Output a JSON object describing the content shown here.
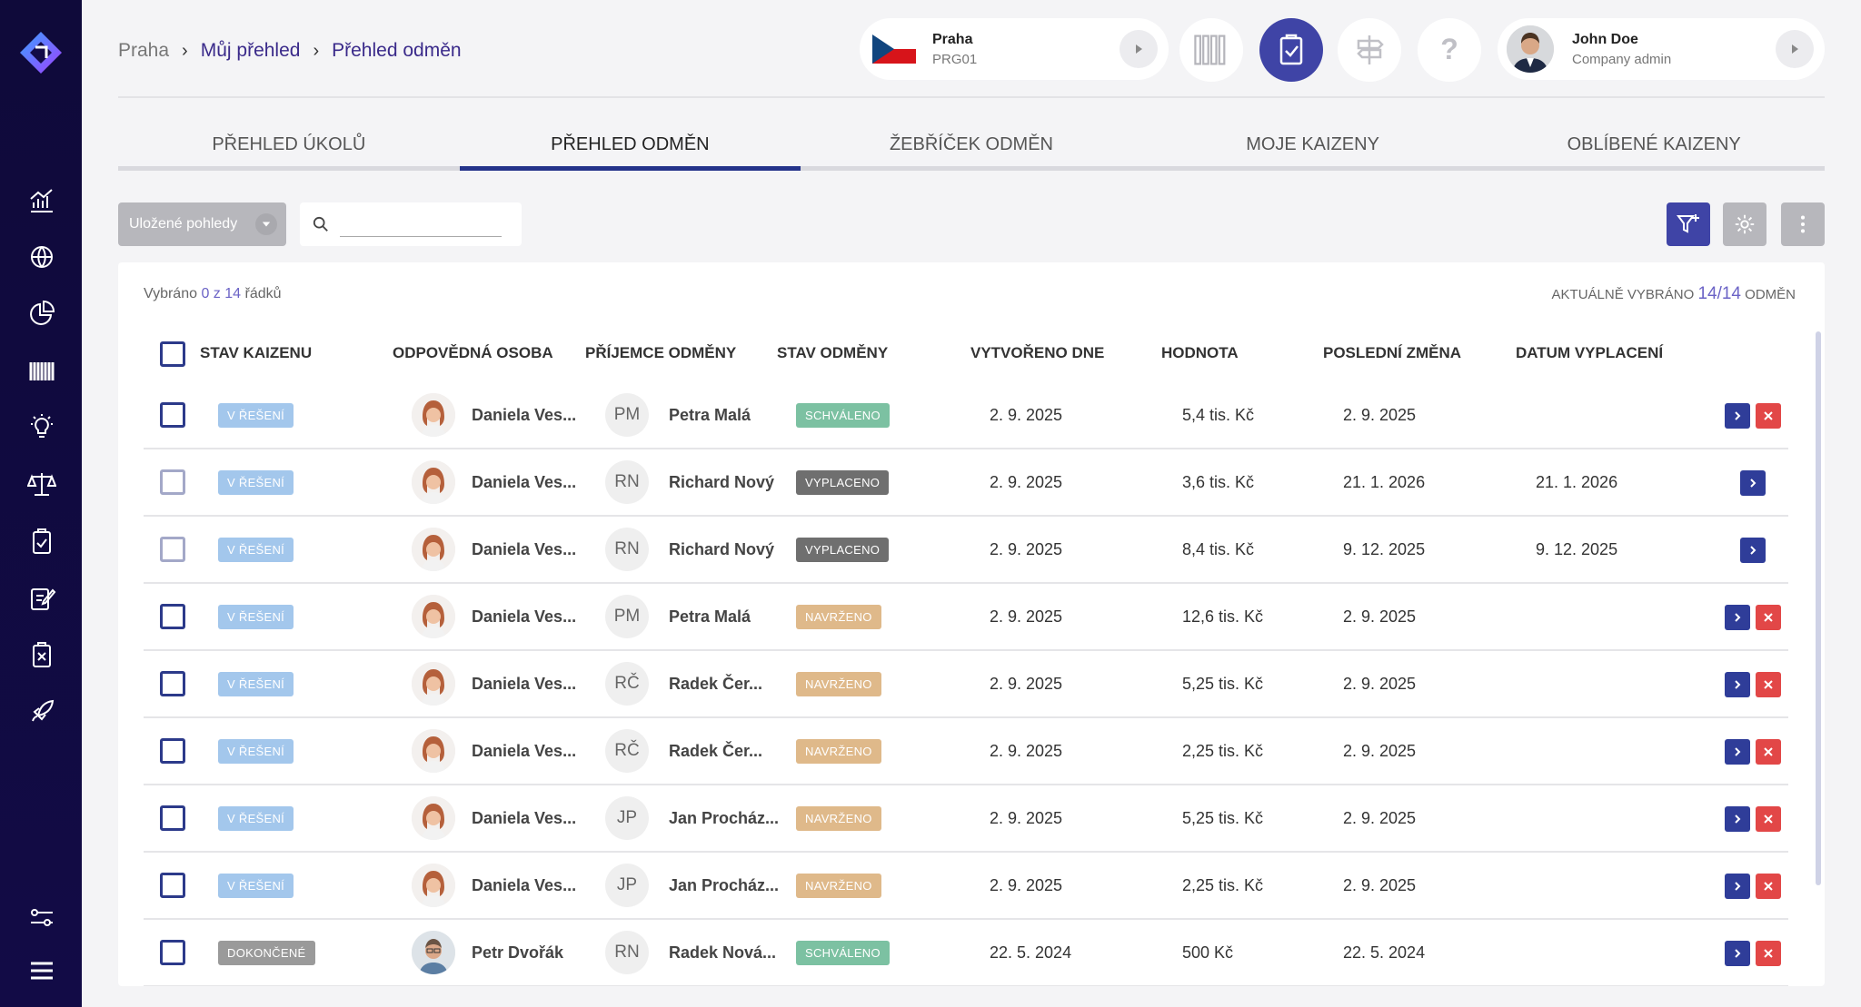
{
  "breadcrumb": {
    "home": "Praha",
    "level1": "Můj přehled",
    "level2": "Přehled odměn"
  },
  "site": {
    "name": "Praha",
    "code": "PRG01"
  },
  "user": {
    "name": "John Doe",
    "role": "Company admin"
  },
  "tabs": [
    {
      "label": "PŘEHLED ÚKOLŮ",
      "active": false
    },
    {
      "label": "PŘEHLED ODMĚN",
      "active": true
    },
    {
      "label": "ŽEBŘÍČEK ODMĚN",
      "active": false
    },
    {
      "label": "MOJE KAIZENY",
      "active": false
    },
    {
      "label": "OBLÍBENÉ KAIZENY",
      "active": false
    }
  ],
  "toolbar": {
    "saved_views": "Uložené pohledy",
    "search_value": "",
    "search_placeholder": ""
  },
  "selection": {
    "prefix": "Vybráno",
    "count": "0 z 14",
    "suffix": "řádků"
  },
  "actual": {
    "prefix": "Aktuálně vybráno",
    "count": "14/14",
    "suffix": "odměn"
  },
  "columns": {
    "stav_kaizenu": "STAV KAIZENU",
    "odpovedna_osoba": "ODPOVĚDNÁ OSOBA",
    "prijemce": "PŘÍJEMCE ODMĚNY",
    "stav_odmeny": "STAV ODMĚNY",
    "vytvoreno": "VYTVOŘENO DNE",
    "hodnota": "HODNOTA",
    "posledni_zmena": "POSLEDNÍ ZMĚNA",
    "datum_vyplaceni": "DATUM VYPLACENÍ"
  },
  "rows": [
    {
      "kaizen_status": "V ŘEŠENÍ",
      "kaizen_class": "b-resi",
      "owner": "Daniela Ves...",
      "owner_avatar": "female",
      "initials": "PM",
      "recipient": "Petra Malá",
      "reward_status": "SCHVÁLENO",
      "reward_class": "b-schv",
      "created": "2. 9. 2025",
      "value": "5,4 tis. Kč",
      "changed": "2. 9. 2025",
      "paid": "",
      "checkbox": "dark",
      "delete": true
    },
    {
      "kaizen_status": "V ŘEŠENÍ",
      "kaizen_class": "b-resi",
      "owner": "Daniela Ves...",
      "owner_avatar": "female",
      "initials": "RN",
      "recipient": "Richard Nový",
      "reward_status": "VYPLACENO",
      "reward_class": "b-vypl",
      "created": "2. 9. 2025",
      "value": "3,6 tis. Kč",
      "changed": "21. 1. 2026",
      "paid": "21. 1. 2026",
      "checkbox": "light",
      "delete": false
    },
    {
      "kaizen_status": "V ŘEŠENÍ",
      "kaizen_class": "b-resi",
      "owner": "Daniela Ves...",
      "owner_avatar": "female",
      "initials": "RN",
      "recipient": "Richard Nový",
      "reward_status": "VYPLACENO",
      "reward_class": "b-vypl",
      "created": "2. 9. 2025",
      "value": "8,4 tis. Kč",
      "changed": "9. 12. 2025",
      "paid": "9. 12. 2025",
      "checkbox": "light",
      "delete": false
    },
    {
      "kaizen_status": "V ŘEŠENÍ",
      "kaizen_class": "b-resi",
      "owner": "Daniela Ves...",
      "owner_avatar": "female",
      "initials": "PM",
      "recipient": "Petra Malá",
      "reward_status": "NAVRŽENO",
      "reward_class": "b-navr",
      "created": "2. 9. 2025",
      "value": "12,6 tis. Kč",
      "changed": "2. 9. 2025",
      "paid": "",
      "checkbox": "dark",
      "delete": true
    },
    {
      "kaizen_status": "V ŘEŠENÍ",
      "kaizen_class": "b-resi",
      "owner": "Daniela Ves...",
      "owner_avatar": "female",
      "initials": "RČ",
      "recipient": "Radek Čer...",
      "reward_status": "NAVRŽENO",
      "reward_class": "b-navr",
      "created": "2. 9. 2025",
      "value": "5,25 tis. Kč",
      "changed": "2. 9. 2025",
      "paid": "",
      "checkbox": "dark",
      "delete": true
    },
    {
      "kaizen_status": "V ŘEŠENÍ",
      "kaizen_class": "b-resi",
      "owner": "Daniela Ves...",
      "owner_avatar": "female",
      "initials": "RČ",
      "recipient": "Radek Čer...",
      "reward_status": "NAVRŽENO",
      "reward_class": "b-navr",
      "created": "2. 9. 2025",
      "value": "2,25 tis. Kč",
      "changed": "2. 9. 2025",
      "paid": "",
      "checkbox": "dark",
      "delete": true
    },
    {
      "kaizen_status": "V ŘEŠENÍ",
      "kaizen_class": "b-resi",
      "owner": "Daniela Ves...",
      "owner_avatar": "female",
      "initials": "JP",
      "recipient": "Jan Procház...",
      "reward_status": "NAVRŽENO",
      "reward_class": "b-navr",
      "created": "2. 9. 2025",
      "value": "5,25 tis. Kč",
      "changed": "2. 9. 2025",
      "paid": "",
      "checkbox": "dark",
      "delete": true
    },
    {
      "kaizen_status": "V ŘEŠENÍ",
      "kaizen_class": "b-resi",
      "owner": "Daniela Ves...",
      "owner_avatar": "female",
      "initials": "JP",
      "recipient": "Jan Procház...",
      "reward_status": "NAVRŽENO",
      "reward_class": "b-navr",
      "created": "2. 9. 2025",
      "value": "2,25 tis. Kč",
      "changed": "2. 9. 2025",
      "paid": "",
      "checkbox": "dark",
      "delete": true
    },
    {
      "kaizen_status": "DOKONČENÉ",
      "kaizen_class": "b-done",
      "owner": "Petr Dvořák",
      "owner_avatar": "male",
      "initials": "RN",
      "recipient": "Radek Nová...",
      "reward_status": "SCHVÁLENO",
      "reward_class": "b-schv",
      "created": "22. 5. 2024",
      "value": "500 Kč",
      "changed": "22. 5. 2024",
      "paid": "",
      "checkbox": "dark",
      "delete": true
    }
  ],
  "colors": {
    "sidebar": "#120b46",
    "accent": "#2f3d99",
    "delete": "#e24747"
  }
}
